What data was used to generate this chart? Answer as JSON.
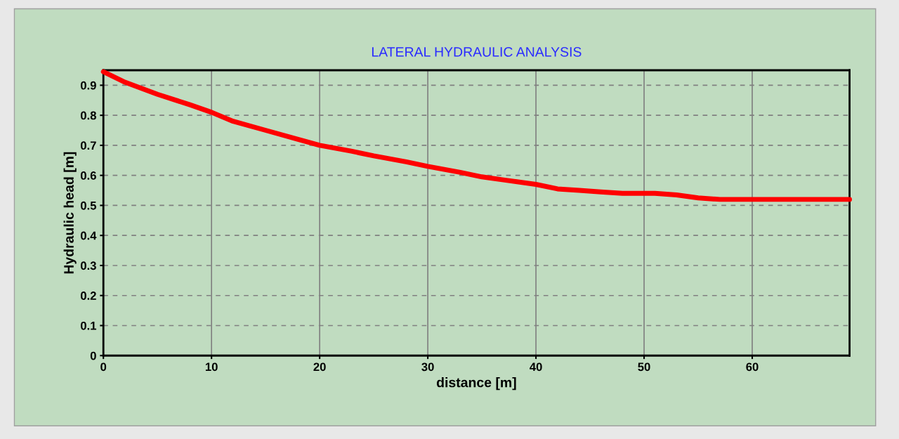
{
  "chart_data": {
    "type": "line",
    "title": "LATERAL HYDRAULIC ANALYSIS",
    "xlabel": "distance [m]",
    "ylabel": "Hydraulic head [m]",
    "x": [
      0,
      2,
      5,
      8,
      10,
      12,
      15,
      18,
      20,
      23,
      25,
      28,
      30,
      33,
      35,
      37,
      40,
      42,
      44,
      46,
      48,
      51,
      53,
      55,
      57,
      60,
      65,
      69
    ],
    "series": [
      {
        "color": "#ff0000",
        "values": [
          0.945,
          0.91,
          0.87,
          0.835,
          0.81,
          0.78,
          0.75,
          0.72,
          0.7,
          0.68,
          0.665,
          0.645,
          0.63,
          0.61,
          0.595,
          0.585,
          0.57,
          0.555,
          0.55,
          0.545,
          0.54,
          0.54,
          0.535,
          0.525,
          0.52,
          0.52,
          0.52,
          0.52
        ]
      }
    ],
    "xlim": [
      0,
      69
    ],
    "ylim": [
      0,
      0.95
    ],
    "xticks": [
      0,
      10,
      20,
      30,
      40,
      50,
      60
    ],
    "yticks": [
      0,
      0.1,
      0.2,
      0.3,
      0.4,
      0.5,
      0.6,
      0.7,
      0.8,
      0.9
    ],
    "grid": true,
    "marker": "none",
    "line_style": "solid"
  }
}
